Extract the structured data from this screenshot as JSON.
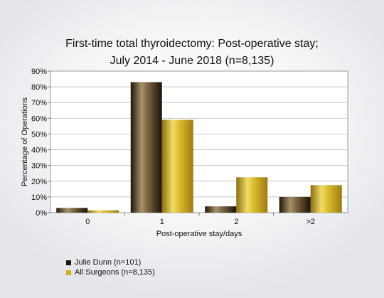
{
  "chart_data": {
    "type": "bar",
    "title": "First-time total thyroidectomy: Post-operative stay;",
    "subtitle": "July 2014 - June 2018 (n=8,135)",
    "xlabel": "Post-operative stay/days",
    "ylabel": "Percentage of Operations",
    "categories": [
      "0",
      "1",
      "2",
      ">2"
    ],
    "ylim": [
      0,
      90
    ],
    "yticks": [
      "0%",
      "10%",
      "20%",
      "30%",
      "40%",
      "50%",
      "60%",
      "70%",
      "80%",
      "90%"
    ],
    "grid": true,
    "legend_position": "bottom-left",
    "series": [
      {
        "name": "Julie Dunn (n=101)",
        "values": [
          3,
          83,
          4,
          10
        ],
        "color": "#3a2a14"
      },
      {
        "name": "All Surgeons (n=8,135)",
        "values": [
          1.5,
          59,
          22.5,
          17.5
        ],
        "color": "#d4b020"
      }
    ]
  }
}
